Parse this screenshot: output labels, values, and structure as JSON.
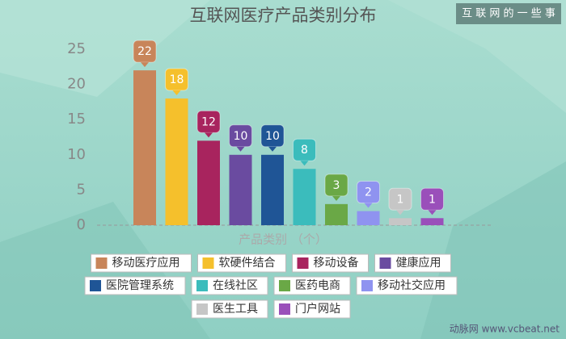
{
  "chart_data": {
    "type": "bar",
    "title": "互联网医疗产品类别分布",
    "x_label": "产品类别 （个）",
    "categories": [
      "移动医疗应用",
      "软硬件结合",
      "移动设备",
      "健康应用",
      "医院管理系统",
      "在线社区",
      "医药电商",
      "移动社交应用",
      "医生工具",
      "门户网站"
    ],
    "values": [
      22,
      18,
      12,
      10,
      10,
      8,
      3,
      2,
      1,
      1
    ],
    "colors": [
      "#c8855a",
      "#f5c02c",
      "#a8245e",
      "#6a4ba0",
      "#1f5596",
      "#3bbcbc",
      "#6aa846",
      "#8f93f0",
      "#c6c6c6",
      "#9a4fba"
    ],
    "ylim": [
      0,
      25
    ],
    "yticks": [
      0,
      5,
      10,
      15,
      20,
      25
    ],
    "grid": false
  },
  "badge": "互 联 网 的 一 些 事",
  "watermark": "动脉网 www.vcbeat.net"
}
